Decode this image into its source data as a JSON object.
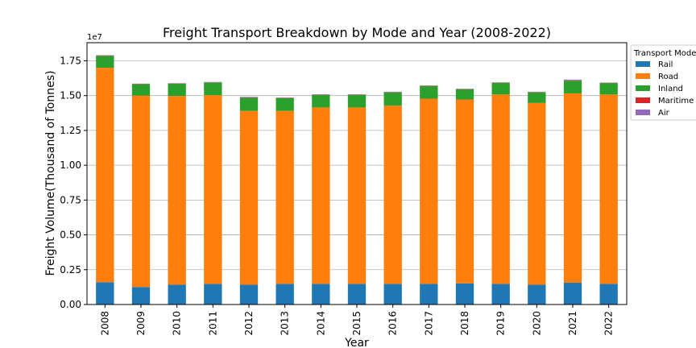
{
  "chart_data": {
    "type": "bar",
    "stacked": true,
    "title": "Freight Transport Breakdown by Mode and Year (2008-2022)",
    "xlabel": "Year",
    "ylabel": "Freight Volume(Thousand of Tonnes)",
    "ylim": [
      0,
      18800000
    ],
    "y_multiplier_label": "1e7",
    "y_ticks": [
      0,
      2500000,
      5000000,
      7500000,
      10000000,
      12500000,
      15000000,
      17500000
    ],
    "y_tick_labels": [
      "0.00",
      "0.25",
      "0.50",
      "0.75",
      "1.00",
      "1.25",
      "1.50",
      "1.75"
    ],
    "grid": "horizontal",
    "legend_title": "Transport Mode",
    "legend_position": "right",
    "categories": [
      "2008",
      "2009",
      "2010",
      "2011",
      "2012",
      "2013",
      "2014",
      "2015",
      "2016",
      "2017",
      "2018",
      "2019",
      "2020",
      "2021",
      "2022"
    ],
    "series": [
      {
        "name": "Rail",
        "color": "#1f77b4",
        "values": [
          1600000,
          1250000,
          1420000,
          1480000,
          1420000,
          1480000,
          1480000,
          1480000,
          1480000,
          1480000,
          1520000,
          1480000,
          1420000,
          1560000,
          1480000
        ]
      },
      {
        "name": "Road",
        "color": "#ff7f0e",
        "values": [
          15400000,
          13750000,
          13550000,
          13550000,
          12480000,
          12420000,
          12670000,
          12670000,
          12800000,
          13300000,
          13200000,
          13600000,
          13050000,
          13600000,
          13600000
        ]
      },
      {
        "name": "Inland",
        "color": "#2ca02c",
        "values": [
          850000,
          820000,
          880000,
          900000,
          950000,
          920000,
          900000,
          900000,
          950000,
          910000,
          730000,
          830000,
          760000,
          910000,
          820000
        ]
      },
      {
        "name": "Maritime",
        "color": "#d62728",
        "values": [
          20000,
          20000,
          20000,
          20000,
          20000,
          20000,
          20000,
          20000,
          20000,
          20000,
          20000,
          20000,
          20000,
          20000,
          20000
        ]
      },
      {
        "name": "Air",
        "color": "#9467bd",
        "values": [
          30000,
          20000,
          20000,
          30000,
          40000,
          20000,
          20000,
          20000,
          30000,
          20000,
          20000,
          20000,
          30000,
          60000,
          20000
        ]
      }
    ]
  }
}
